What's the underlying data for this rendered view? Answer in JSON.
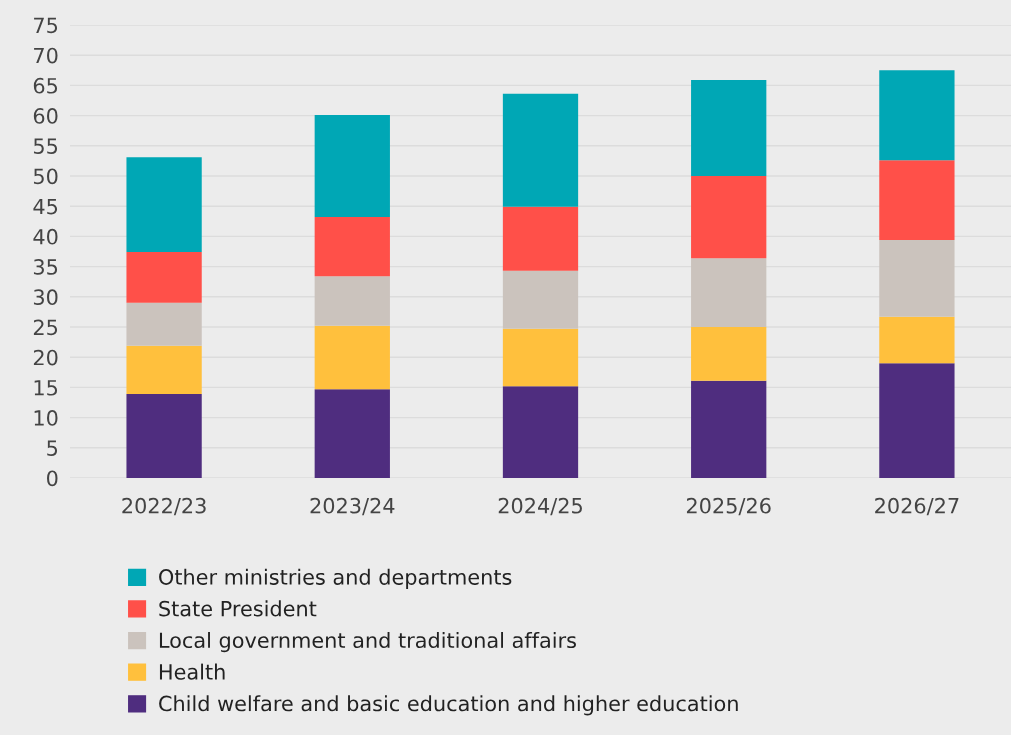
{
  "chart_data": {
    "type": "bar",
    "stacked": true,
    "categories": [
      "2022/23",
      "2023/24",
      "2024/25",
      "2025/26",
      "2026/27"
    ],
    "series": [
      {
        "name": "Child welfare and basic education and higher education",
        "color": "#4f2d7f",
        "values": [
          13.9,
          14.7,
          15.2,
          16.1,
          19.0
        ]
      },
      {
        "name": "Health",
        "color": "#ffc03d",
        "values": [
          8.0,
          10.5,
          9.5,
          8.9,
          7.7
        ]
      },
      {
        "name": "Local government and traditional affairs",
        "color": "#cbc3bd",
        "values": [
          7.1,
          8.2,
          9.6,
          11.4,
          12.7
        ]
      },
      {
        "name": "State President",
        "color": "#ff5049",
        "values": [
          8.4,
          9.8,
          10.6,
          13.6,
          13.2
        ]
      },
      {
        "name": "Other ministries and departments",
        "color": "#00a7b5",
        "values": [
          15.7,
          16.9,
          18.7,
          15.9,
          14.9
        ]
      }
    ],
    "ylim": [
      0,
      75
    ],
    "yticks": [
      0,
      5,
      10,
      15,
      20,
      25,
      30,
      35,
      40,
      45,
      50,
      55,
      60,
      65,
      70,
      75
    ],
    "grid": "y",
    "legend": "bottom"
  }
}
